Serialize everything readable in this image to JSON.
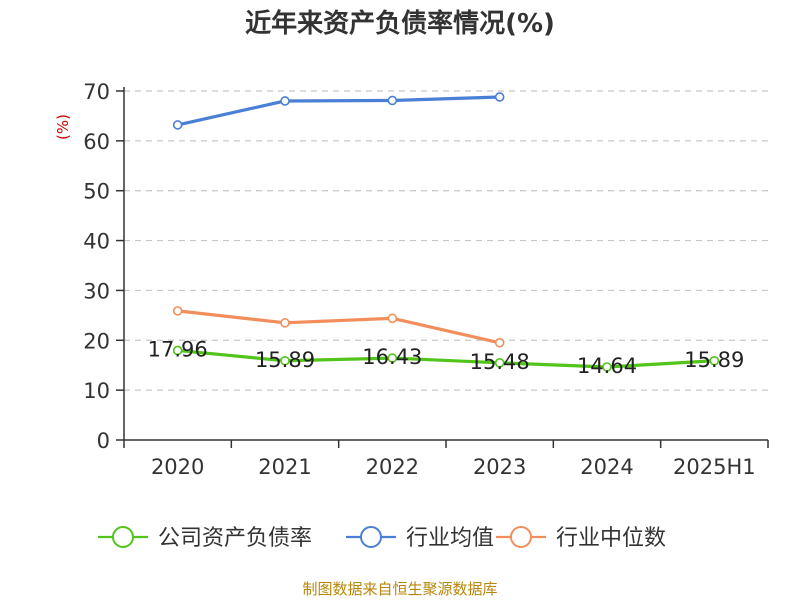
{
  "chart_data": {
    "type": "line",
    "title": "近年来资产负债率情况(%)",
    "xlabel": "",
    "ylabel": "(%)",
    "categories": [
      "2020",
      "2021",
      "2022",
      "2023",
      "2024",
      "2025H1"
    ],
    "ylim": [
      0,
      70
    ],
    "yticks": [
      0,
      10,
      20,
      30,
      40,
      50,
      60,
      70
    ],
    "grid": true,
    "legend_position": "bottom",
    "series": [
      {
        "name": "公司资产负债率",
        "color": "#52c41a",
        "values": [
          17.96,
          15.89,
          16.43,
          15.48,
          14.64,
          15.89
        ],
        "labels": [
          "17.96",
          "15.89",
          "16.43",
          "15.48",
          "14.64",
          "15.89"
        ]
      },
      {
        "name": "行业均值",
        "color": "#4a7fd6",
        "values": [
          63.2,
          68.0,
          68.1,
          68.8,
          null,
          null
        ]
      },
      {
        "name": "行业中位数",
        "color": "#f28e5b",
        "values": [
          25.9,
          23.5,
          24.4,
          19.5,
          null,
          null
        ]
      }
    ]
  },
  "source": "制图数据来自恒生聚源数据库"
}
